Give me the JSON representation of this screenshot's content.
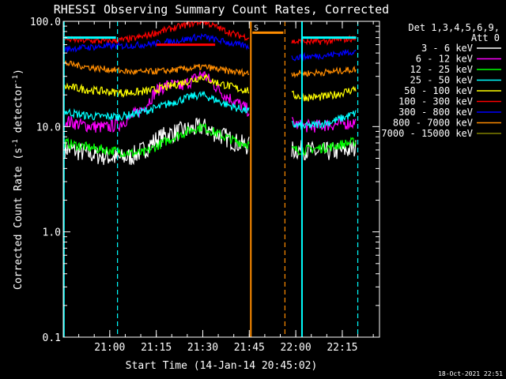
{
  "chart_data": {
    "type": "line",
    "title": "RHESSI Observing Summary Count Rates, Corrected",
    "ylabel": "Corrected Count Rate (s⁻¹ detector⁻¹)",
    "ylabel_main": "Corrected Count Rate (s",
    "ylabel_sup1": "-1",
    "ylabel_mid": " detector",
    "ylabel_sup2": "-1",
    "ylabel_end": ")",
    "xlabel": "Start Time (14-Jan-14 20:45:02)",
    "timestamp": "18-Oct-2021 22:51",
    "y_scale": "log",
    "ylim": [
      0.1,
      100.0
    ],
    "y_ticks": [
      {
        "value": 0.1,
        "label": "0.1"
      },
      {
        "value": 1.0,
        "label": "1.0"
      },
      {
        "value": 10.0,
        "label": "10.0"
      },
      {
        "value": 100.0,
        "label": "100.0"
      }
    ],
    "xlim_minutes_after_start": [
      0,
      102
    ],
    "x_ticks": [
      {
        "t": 15,
        "label": "21:00"
      },
      {
        "t": 30,
        "label": "21:15"
      },
      {
        "t": 45,
        "label": "21:30"
      },
      {
        "t": 60,
        "label": "21:45"
      },
      {
        "t": 75,
        "label": "22:00"
      },
      {
        "t": 90,
        "label": "22:15"
      }
    ],
    "legend": {
      "position": "right",
      "header": [
        "Det 1,3,4,5,6,9,",
        "Att 0"
      ],
      "entries": [
        {
          "label": "3 - 6 keV",
          "color": "#ffffff"
        },
        {
          "label": "6 - 12 keV",
          "color": "#ff00ff"
        },
        {
          "label": "12 - 25 keV",
          "color": "#00ff00"
        },
        {
          "label": "25 - 50 keV",
          "color": "#00ffff"
        },
        {
          "label": "50 - 100 keV",
          "color": "#ffff00"
        },
        {
          "label": "100 - 300 keV",
          "color": "#ff0000"
        },
        {
          "label": "300 - 800 keV",
          "color": "#0000ff"
        },
        {
          "label": "800 - 7000 keV",
          "color": "#ff8c00"
        },
        {
          "label": "7000 - 15000 keV",
          "color": "#808000"
        }
      ]
    },
    "series": [
      {
        "name": "3 - 6 keV",
        "color": "#ffffff",
        "noise": 0.12,
        "segments": [
          {
            "t": [
              0.5,
              5,
              10,
              14,
              18,
              22,
              26,
              30,
              34,
              38,
              42,
              45,
              48,
              52,
              56,
              60
            ],
            "y": [
              6.2,
              5.8,
              5.4,
              5.2,
              5.0,
              5.2,
              6.0,
              7.5,
              8.5,
              9.0,
              9.5,
              10.0,
              9.0,
              8.0,
              7.0,
              6.5
            ]
          },
          {
            "t": [
              73.5,
              78,
              82,
              86,
              90,
              94.5
            ],
            "y": [
              6.0,
              6.0,
              5.7,
              5.8,
              5.9,
              6.2
            ]
          }
        ]
      },
      {
        "name": "6 - 12 keV",
        "color": "#ff00ff",
        "noise": 0.08,
        "segments": [
          {
            "t": [
              0.5,
              5,
              10,
              14,
              18,
              22,
              26,
              30,
              34,
              38,
              42,
              45,
              48,
              52,
              56,
              60
            ],
            "y": [
              11.5,
              10.5,
              10.0,
              9.8,
              10.5,
              12.5,
              15.0,
              22.0,
              25.0,
              24.0,
              28.0,
              32.0,
              26.0,
              20.0,
              17.0,
              14.0
            ]
          },
          {
            "t": [
              73.5,
              76,
              80,
              84,
              88,
              94.5
            ],
            "y": [
              11.0,
              10.2,
              10.0,
              10.3,
              10.5,
              11.0
            ]
          }
        ]
      },
      {
        "name": "12 - 25 keV",
        "color": "#00ff00",
        "noise": 0.06,
        "segments": [
          {
            "t": [
              0.5,
              5,
              10,
              14,
              18,
              22,
              26,
              30,
              34,
              38,
              42,
              45,
              48,
              52,
              56,
              60
            ],
            "y": [
              7.0,
              6.6,
              6.2,
              6.0,
              5.8,
              5.6,
              5.6,
              6.5,
              7.5,
              8.5,
              9.5,
              10.0,
              9.0,
              8.0,
              7.2,
              6.8
            ]
          },
          {
            "t": [
              73.5,
              78,
              82,
              86,
              90,
              94.5
            ],
            "y": [
              6.0,
              6.0,
              6.2,
              6.4,
              6.8,
              7.2
            ]
          }
        ]
      },
      {
        "name": "25 - 50 keV",
        "color": "#00ffff",
        "noise": 0.05,
        "segments": [
          {
            "t": [
              0.5,
              5,
              10,
              14,
              18,
              22,
              26,
              30,
              34,
              38,
              42,
              45,
              48,
              52,
              56,
              60
            ],
            "y": [
              14.0,
              13.0,
              12.5,
              12.5,
              12.5,
              13.0,
              14.0,
              15.0,
              16.5,
              18.0,
              19.5,
              20.0,
              18.5,
              16.5,
              15.0,
              14.0
            ]
          },
          {
            "t": [
              73.5,
              78,
              82,
              86,
              90,
              94.5
            ],
            "y": [
              10.5,
              10.0,
              10.5,
              11.0,
              12.0,
              13.5
            ]
          }
        ]
      },
      {
        "name": "50 - 100 keV",
        "color": "#ffff00",
        "noise": 0.05,
        "segments": [
          {
            "t": [
              0.5,
              5,
              10,
              14,
              18,
              22,
              26,
              30,
              34,
              38,
              42,
              45,
              48,
              52,
              56,
              60
            ],
            "y": [
              24.0,
              23.0,
              22.0,
              21.5,
              21.0,
              21.0,
              21.5,
              22.5,
              24.0,
              26.0,
              28.0,
              30.0,
              27.0,
              25.0,
              23.0,
              22.0
            ]
          },
          {
            "t": [
              73.5,
              78,
              82,
              86,
              90,
              94.5
            ],
            "y": [
              20.0,
              19.0,
              19.0,
              19.5,
              21.0,
              23.0
            ]
          }
        ]
      },
      {
        "name": "100 - 300 keV",
        "color": "#ff0000",
        "noise": 0.04,
        "segments": [
          {
            "t": [
              0.5,
              5,
              10,
              14,
              18,
              22,
              26,
              30,
              34,
              38,
              42,
              45,
              48,
              52,
              56,
              60
            ],
            "y": [
              68.0,
              66.0,
              65.0,
              65.0,
              66.0,
              68.0,
              72.0,
              78.0,
              84.0,
              90.0,
              96.0,
              100.0,
              92.0,
              82.0,
              74.0,
              70.0
            ]
          },
          {
            "t": [
              73.5,
              78,
              82,
              86,
              90,
              94.5
            ],
            "y": [
              64.0,
              64.0,
              64.0,
              65.0,
              67.0,
              69.0
            ]
          }
        ]
      },
      {
        "name": "300 - 800 keV",
        "color": "#0000ff",
        "noise": 0.04,
        "segments": [
          {
            "t": [
              0.5,
              5,
              10,
              14,
              18,
              22,
              26,
              30,
              34,
              38,
              42,
              45,
              48,
              52,
              56,
              60
            ],
            "y": [
              54.0,
              56.0,
              57.0,
              58.0,
              58.0,
              59.0,
              60.0,
              62.0,
              64.0,
              66.0,
              70.0,
              72.0,
              68.0,
              64.0,
              60.0,
              58.0
            ]
          },
          {
            "t": [
              73.5,
              78,
              82,
              86,
              90,
              94.5
            ],
            "y": [
              45.0,
              46.0,
              47.0,
              48.0,
              50.0,
              52.0
            ]
          }
        ]
      },
      {
        "name": "800 - 7000 keV",
        "color": "#ff8c00",
        "noise": 0.04,
        "segments": [
          {
            "t": [
              0.5,
              5,
              10,
              14,
              18,
              22,
              26,
              30,
              34,
              38,
              42,
              45,
              48,
              52,
              56,
              60
            ],
            "y": [
              40.0,
              38.0,
              36.0,
              35.0,
              34.0,
              33.0,
              33.0,
              33.5,
              34.0,
              35.0,
              36.0,
              37.0,
              36.0,
              34.0,
              33.0,
              32.0
            ]
          },
          {
            "t": [
              73.5,
              78,
              82,
              86,
              90,
              94.5
            ],
            "y": [
              32.0,
              32.0,
              32.5,
              33.0,
              34.0,
              35.0
            ]
          }
        ]
      }
    ],
    "vertical_markers": [
      {
        "t": 0.2,
        "color": "#00ffff",
        "style": "solid"
      },
      {
        "t": 17.5,
        "color": "#00ffff",
        "style": "dashed"
      },
      {
        "t": 60.5,
        "color": "#ff8c00",
        "style": "solid"
      },
      {
        "t": 71.5,
        "color": "#ff8c00",
        "style": "dashed"
      },
      {
        "t": 77.0,
        "color": "#00ffff",
        "style": "solid"
      },
      {
        "t": 95.0,
        "color": "#00ffff",
        "style": "dashed"
      }
    ],
    "flag_bars": [
      {
        "t_start": 0.5,
        "t_end": 17,
        "value": 70,
        "color": "#00ffff"
      },
      {
        "t_start": 30,
        "t_end": 49,
        "value": 60,
        "color": "#ff0000"
      },
      {
        "t_start": 61,
        "t_end": 71,
        "value": 78,
        "color": "#ff8c00"
      },
      {
        "t_start": 77,
        "t_end": 94.5,
        "value": 70,
        "color": "#00ffff"
      }
    ],
    "flag_markers": [
      {
        "t": 61.5,
        "value": 82,
        "text": "S",
        "color": "#ff8c00"
      }
    ],
    "annotations": [
      {
        "text": "S",
        "color": "#ff8c00"
      }
    ]
  }
}
